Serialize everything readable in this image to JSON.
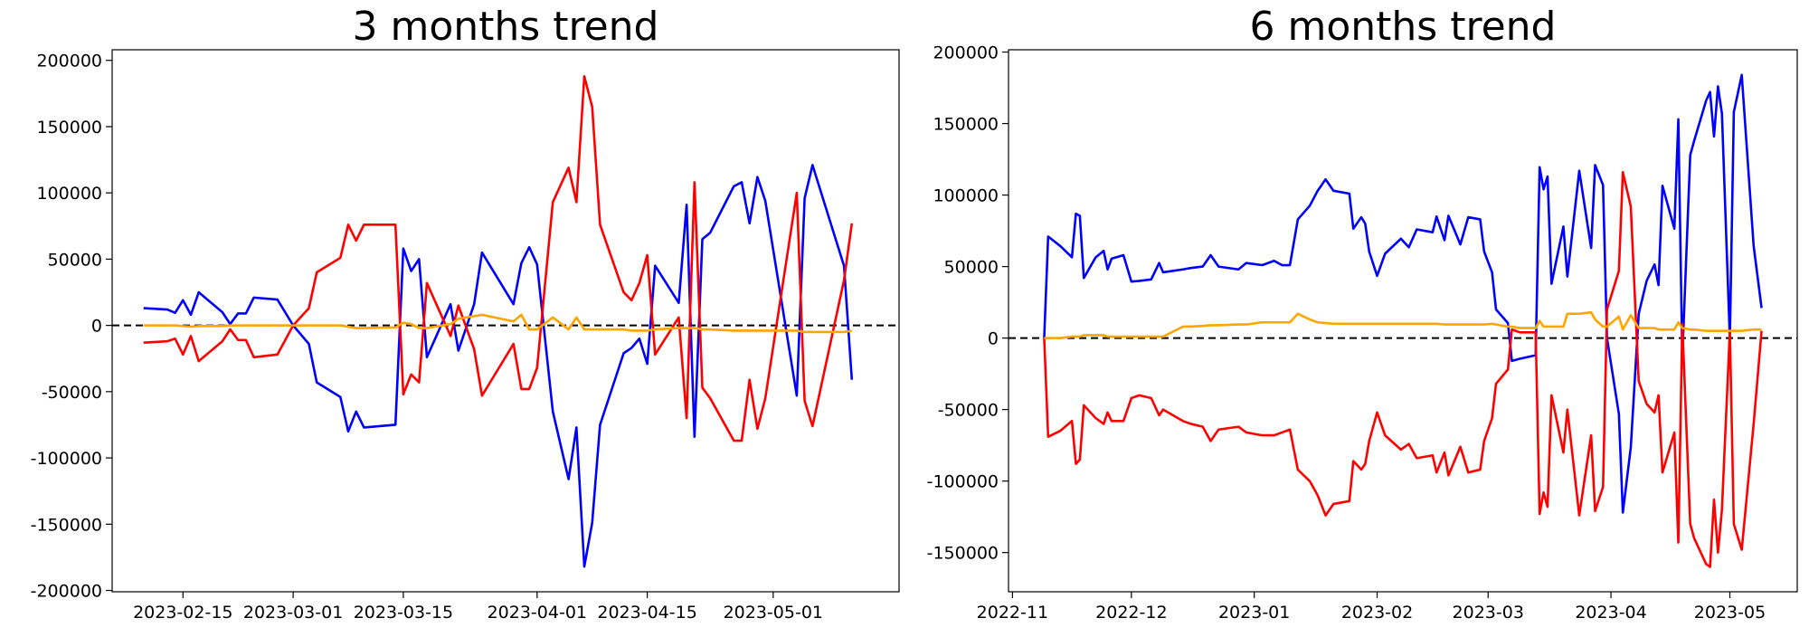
{
  "chart_data": [
    {
      "type": "line",
      "title": "3 months trend",
      "x": [
        "2023-02-10",
        "2023-02-13",
        "2023-02-14",
        "2023-02-15",
        "2023-02-16",
        "2023-02-17",
        "2023-02-20",
        "2023-02-21",
        "2023-02-22",
        "2023-02-23",
        "2023-02-24",
        "2023-02-27",
        "2023-03-01",
        "2023-03-03",
        "2023-03-04",
        "2023-03-07",
        "2023-03-08",
        "2023-03-09",
        "2023-03-10",
        "2023-03-14",
        "2023-03-15",
        "2023-03-16",
        "2023-03-17",
        "2023-03-18",
        "2023-03-21",
        "2023-03-22",
        "2023-03-24",
        "2023-03-25",
        "2023-03-29",
        "2023-03-30",
        "2023-03-31",
        "2023-04-01",
        "2023-04-03",
        "2023-04-05",
        "2023-04-06",
        "2023-04-07",
        "2023-04-08",
        "2023-04-09",
        "2023-04-12",
        "2023-04-13",
        "2023-04-14",
        "2023-04-15",
        "2023-04-16",
        "2023-04-19",
        "2023-04-20",
        "2023-04-21",
        "2023-04-22",
        "2023-04-23",
        "2023-04-26",
        "2023-04-27",
        "2023-04-28",
        "2023-04-29",
        "2023-04-30",
        "2023-05-04",
        "2023-05-05",
        "2023-05-06",
        "2023-05-10",
        "2023-05-11"
      ],
      "series": [
        {
          "color": "blue",
          "values": [
            13000,
            12000,
            9500,
            19000,
            8000,
            25000,
            10000,
            1000,
            9000,
            9000,
            21000,
            19500,
            0,
            -14000,
            -43000,
            -54000,
            -80000,
            -65000,
            -77000,
            -75000,
            58000,
            41000,
            50000,
            -24000,
            16000,
            -19000,
            16000,
            55000,
            16000,
            47000,
            59000,
            46000,
            -65000,
            -116000,
            -77000,
            -182000,
            -149000,
            -75000,
            -21000,
            -17000,
            -10000,
            -29000,
            45000,
            17000,
            91000,
            -84000,
            65000,
            70000,
            105000,
            108000,
            77000,
            112000,
            94000,
            -53000,
            96000,
            121000,
            45000,
            -41000
          ]
        },
        {
          "color": "red",
          "values": [
            -13000,
            -12000,
            -10000,
            -22000,
            -8000,
            -27000,
            -12000,
            -3000,
            -11000,
            -11000,
            -24000,
            -22000,
            0,
            13000,
            40000,
            51000,
            76000,
            64000,
            76000,
            76000,
            -52000,
            -37000,
            -43000,
            32000,
            -8000,
            15000,
            -18000,
            -53000,
            -14000,
            -48000,
            -48000,
            -32000,
            93000,
            119000,
            93000,
            188000,
            165000,
            76000,
            25000,
            19000,
            32000,
            53000,
            -22000,
            6000,
            -70000,
            108000,
            -47000,
            -55000,
            -87000,
            -87000,
            -41000,
            -78000,
            -55000,
            100000,
            -57000,
            -76000,
            34000,
            77000
          ]
        },
        {
          "color": "orange",
          "values": [
            0,
            0,
            0,
            -500,
            -1000,
            -500,
            -500,
            0,
            0,
            0,
            0,
            0,
            0,
            0,
            0,
            0,
            -1000,
            -2000,
            -2000,
            -1500,
            2000,
            1000,
            -2000,
            -2000,
            1000,
            5000,
            7000,
            8000,
            3000,
            8000,
            -3000,
            -3000,
            6000,
            -3000,
            6000,
            -3000,
            -3000,
            -3000,
            -3000,
            -4000,
            -4000,
            -4000,
            -3000,
            -2000,
            -2000,
            -2000,
            -3000,
            -3000,
            -4000,
            -4000,
            -4000,
            -4000,
            -4000,
            -4000,
            -5000,
            -5000,
            -5000,
            -4000
          ]
        }
      ],
      "xlim": [
        "2023-02-06",
        "2023-05-17"
      ],
      "xticks": [
        "2023-02-15",
        "2023-03-01",
        "2023-03-15",
        "2023-04-01",
        "2023-04-15",
        "2023-05-01"
      ],
      "ylim": [
        -201000,
        208000
      ],
      "yticks": [
        -200000,
        -150000,
        -100000,
        -50000,
        0,
        50000,
        100000,
        150000,
        200000
      ],
      "hline": 0
    },
    {
      "type": "line",
      "title": "6 months trend",
      "x": [
        "2022-11-09",
        "2022-11-10",
        "2022-11-13",
        "2022-11-16",
        "2022-11-17",
        "2022-11-18",
        "2022-11-19",
        "2022-11-22",
        "2022-11-24",
        "2022-11-25",
        "2022-11-26",
        "2022-11-29",
        "2022-12-01",
        "2022-12-03",
        "2022-12-06",
        "2022-12-08",
        "2022-12-09",
        "2022-12-14",
        "2022-12-16",
        "2022-12-19",
        "2022-12-21",
        "2022-12-23",
        "2022-12-28",
        "2022-12-30",
        "2023-01-03",
        "2023-01-06",
        "2023-01-08",
        "2023-01-10",
        "2023-01-12",
        "2023-01-15",
        "2023-01-17",
        "2023-01-19",
        "2023-01-21",
        "2023-01-25",
        "2023-01-26",
        "2023-01-28",
        "2023-01-29",
        "2023-01-30",
        "2023-02-01",
        "2023-02-03",
        "2023-02-07",
        "2023-02-09",
        "2023-02-11",
        "2023-02-15",
        "2023-02-16",
        "2023-02-18",
        "2023-02-19",
        "2023-02-22",
        "2023-02-24",
        "2023-02-27",
        "2023-02-28",
        "2023-03-02",
        "2023-03-03",
        "2023-03-06",
        "2023-03-07",
        "2023-03-09",
        "2023-03-13",
        "2023-03-14",
        "2023-03-15",
        "2023-03-16",
        "2023-03-17",
        "2023-03-20",
        "2023-03-21",
        "2023-03-24",
        "2023-03-27",
        "2023-03-28",
        "2023-03-30",
        "2023-03-31",
        "2023-04-03",
        "2023-04-04",
        "2023-04-06",
        "2023-04-08",
        "2023-04-10",
        "2023-04-12",
        "2023-04-13",
        "2023-04-14",
        "2023-04-17",
        "2023-04-18",
        "2023-04-19",
        "2023-04-21",
        "2023-04-22",
        "2023-04-25",
        "2023-04-26",
        "2023-04-27",
        "2023-04-28",
        "2023-04-29",
        "2023-05-01",
        "2023-05-02",
        "2023-05-04",
        "2023-05-07",
        "2023-05-09"
      ],
      "series": [
        {
          "color": "blue",
          "values": [
            0,
            71000,
            64500,
            56500,
            87000,
            85500,
            42000,
            56500,
            61000,
            48000,
            55500,
            58000,
            39500,
            40000,
            41000,
            52500,
            46000,
            48000,
            49000,
            50000,
            58000,
            50000,
            48000,
            52500,
            51000,
            54000,
            51000,
            51000,
            83000,
            92500,
            103000,
            111000,
            103000,
            101000,
            76500,
            84500,
            80000,
            60500,
            43500,
            59000,
            69500,
            63500,
            76000,
            74000,
            85000,
            68500,
            85500,
            65500,
            84500,
            83000,
            60500,
            46000,
            20000,
            10500,
            -16000,
            -14500,
            -12000,
            119500,
            104000,
            113000,
            38000,
            78000,
            43000,
            117000,
            63000,
            121000,
            107000,
            0,
            -53000,
            -122000,
            -76500,
            17000,
            40000,
            51500,
            37000,
            106500,
            76500,
            153000,
            -14000,
            128000,
            138000,
            166000,
            172000,
            141000,
            176000,
            157000,
            -1000,
            158000,
            184000,
            64500,
            21000
          ]
        },
        {
          "color": "red",
          "values": [
            0,
            -69000,
            -65000,
            -58000,
            -88000,
            -85000,
            -47000,
            -56000,
            -60000,
            -52000,
            -58000,
            -58000,
            -42000,
            -40000,
            -42000,
            -54000,
            -50000,
            -58000,
            -60000,
            -62000,
            -72000,
            -64000,
            -62000,
            -66000,
            -68000,
            -68000,
            -66000,
            -64000,
            -92000,
            -100000,
            -110000,
            -124000,
            -116000,
            -114000,
            -86000,
            -92000,
            -88000,
            -72000,
            -52000,
            -68000,
            -78000,
            -74000,
            -84000,
            -82000,
            -94000,
            -80000,
            -96000,
            -76000,
            -94000,
            -92000,
            -72000,
            -56000,
            -32000,
            -22000,
            6000,
            4000,
            4000,
            -123000,
            -108000,
            -118000,
            -40000,
            -80000,
            -50000,
            -124000,
            -68000,
            -121000,
            -104000,
            20000,
            47000,
            116000,
            92000,
            -30000,
            -46000,
            -52000,
            -40000,
            -94000,
            -66000,
            -143000,
            10000,
            -130000,
            -140000,
            -158000,
            -160000,
            -113000,
            -150000,
            -120000,
            5000,
            -130000,
            -148000,
            -60000,
            5000
          ]
        },
        {
          "color": "orange",
          "values": [
            0,
            0,
            0,
            1000,
            1000,
            1000,
            2000,
            2000,
            2000,
            1000,
            1000,
            1000,
            1000,
            1000,
            1000,
            1000,
            1000,
            8000,
            8000,
            8500,
            9000,
            9000,
            9500,
            9500,
            11000,
            11000,
            11000,
            11000,
            17000,
            13000,
            11000,
            10500,
            10000,
            10000,
            10000,
            10000,
            10000,
            10000,
            10000,
            10000,
            10000,
            10000,
            10000,
            10000,
            10000,
            9500,
            9500,
            9500,
            9500,
            9500,
            9500,
            10000,
            9500,
            8000,
            8000,
            7000,
            7000,
            12000,
            8000,
            8000,
            8000,
            8000,
            17000,
            17000,
            18000,
            13000,
            8000,
            8000,
            15000,
            6000,
            16000,
            7000,
            7000,
            7000,
            6000,
            6000,
            6000,
            11000,
            7000,
            6000,
            6000,
            5000,
            5000,
            5000,
            5000,
            5000,
            5000,
            5000,
            5000,
            6000,
            6000
          ]
        }
      ],
      "xlim": [
        "2022-10-31",
        "2023-05-18"
      ],
      "xticks": [
        "2022-11",
        "2022-12",
        "2023-01",
        "2023-02",
        "2023-03",
        "2023-04",
        "2023-05"
      ],
      "ylim": [
        -177400,
        201600
      ],
      "yticks": [
        -150000,
        -100000,
        -50000,
        0,
        50000,
        100000,
        150000,
        200000
      ],
      "hline": 0
    }
  ]
}
